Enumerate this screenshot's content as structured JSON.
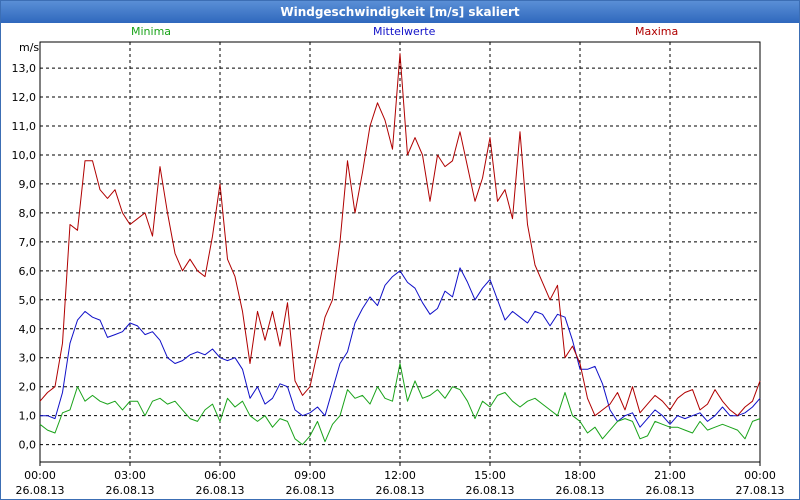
{
  "window": {
    "title": "Windgeschwindigkeit [m/s] skaliert"
  },
  "chart_data": {
    "type": "line",
    "title": "Windgeschwindigkeit [m/s] skaliert",
    "ylabel": "m/s",
    "ylim": [
      -0.6,
      13.9
    ],
    "xlim": [
      "26.08.13 00:00",
      "27.08.13 00:00"
    ],
    "grid": true,
    "legend_position": "top",
    "y_ticks": [
      "0,0",
      "1,0",
      "2,0",
      "3,0",
      "4,0",
      "5,0",
      "6,0",
      "7,0",
      "8,0",
      "9,0",
      "10,0",
      "11,0",
      "12,0",
      "13,0"
    ],
    "x_ticks": [
      {
        "time": "00:00",
        "date": "26.08.13"
      },
      {
        "time": "03:00",
        "date": "26.08.13"
      },
      {
        "time": "06:00",
        "date": "26.08.13"
      },
      {
        "time": "09:00",
        "date": "26.08.13"
      },
      {
        "time": "12:00",
        "date": "26.08.13"
      },
      {
        "time": "15:00",
        "date": "26.08.13"
      },
      {
        "time": "18:00",
        "date": "26.08.13"
      },
      {
        "time": "21:00",
        "date": "26.08.13"
      },
      {
        "time": "00:00",
        "date": "27.08.13"
      }
    ],
    "x_hours": [
      0,
      0.25,
      0.5,
      0.75,
      1,
      1.25,
      1.5,
      1.75,
      2,
      2.25,
      2.5,
      2.75,
      3,
      3.25,
      3.5,
      3.75,
      4,
      4.25,
      4.5,
      4.75,
      5,
      5.25,
      5.5,
      5.75,
      6,
      6.25,
      6.5,
      6.75,
      7,
      7.25,
      7.5,
      7.75,
      8,
      8.25,
      8.5,
      8.75,
      9,
      9.25,
      9.5,
      9.75,
      10,
      10.25,
      10.5,
      10.75,
      11,
      11.25,
      11.5,
      11.75,
      12,
      12.25,
      12.5,
      12.75,
      13,
      13.25,
      13.5,
      13.75,
      14,
      14.25,
      14.5,
      14.75,
      15,
      15.25,
      15.5,
      15.75,
      16,
      16.25,
      16.5,
      16.75,
      17,
      17.25,
      17.5,
      17.75,
      18,
      18.25,
      18.5,
      18.75,
      19,
      19.25,
      19.5,
      19.75,
      20,
      20.25,
      20.5,
      20.75,
      21,
      21.25,
      21.5,
      21.75,
      22,
      22.25,
      22.5,
      22.75,
      23,
      23.25,
      23.5,
      23.75,
      24
    ],
    "series": [
      {
        "name": "Minima",
        "color": "#1aa31a",
        "values": [
          0.7,
          0.5,
          0.4,
          1.1,
          1.2,
          2.0,
          1.5,
          1.7,
          1.5,
          1.4,
          1.5,
          1.2,
          1.5,
          1.5,
          1.0,
          1.5,
          1.6,
          1.4,
          1.5,
          1.2,
          0.9,
          0.8,
          1.2,
          1.4,
          0.8,
          1.6,
          1.3,
          1.5,
          1.0,
          0.8,
          1.0,
          0.6,
          0.9,
          0.8,
          0.2,
          0.0,
          0.3,
          0.8,
          0.1,
          0.7,
          1.0,
          1.9,
          1.6,
          1.7,
          1.4,
          2.0,
          1.6,
          1.5,
          2.8,
          1.5,
          2.2,
          1.6,
          1.7,
          1.9,
          1.6,
          2.0,
          1.9,
          1.5,
          0.9,
          1.5,
          1.3,
          1.7,
          1.8,
          1.5,
          1.3,
          1.5,
          1.6,
          1.4,
          1.2,
          1.0,
          1.8,
          1.0,
          0.8,
          0.4,
          0.6,
          0.2,
          0.5,
          0.8,
          0.9,
          0.8,
          0.2,
          0.3,
          0.8,
          0.7,
          0.6,
          0.6,
          0.5,
          0.4,
          0.8,
          0.5,
          0.6,
          0.7,
          0.6,
          0.5,
          0.2,
          0.8,
          0.9
        ]
      },
      {
        "name": "Mittelwerte",
        "color": "#1010c8",
        "values": [
          1.0,
          1.0,
          0.9,
          1.8,
          3.5,
          4.3,
          4.6,
          4.4,
          4.3,
          3.7,
          3.8,
          3.9,
          4.2,
          4.1,
          3.8,
          3.9,
          3.6,
          3.0,
          2.8,
          2.9,
          3.1,
          3.2,
          3.1,
          3.3,
          3.0,
          2.9,
          3.0,
          2.6,
          1.6,
          2.0,
          1.4,
          1.6,
          2.1,
          2.0,
          1.2,
          1.0,
          1.1,
          1.3,
          1.0,
          1.9,
          2.8,
          3.2,
          4.2,
          4.7,
          5.1,
          4.8,
          5.5,
          5.8,
          6.0,
          5.6,
          5.4,
          4.9,
          4.5,
          4.7,
          5.3,
          5.1,
          6.1,
          5.6,
          5.0,
          5.4,
          5.7,
          5.0,
          4.3,
          4.6,
          4.4,
          4.2,
          4.6,
          4.5,
          4.1,
          4.5,
          4.4,
          3.6,
          2.6,
          2.6,
          2.7,
          2.1,
          1.2,
          0.8,
          1.0,
          1.1,
          0.6,
          0.9,
          1.2,
          1.0,
          0.7,
          1.0,
          0.9,
          1.0,
          1.1,
          0.8,
          1.0,
          1.3,
          1.0,
          1.0,
          1.1,
          1.3,
          1.6
        ]
      },
      {
        "name": "Maxima",
        "color": "#b00000",
        "values": [
          1.5,
          1.8,
          2.0,
          3.5,
          7.6,
          7.4,
          9.8,
          9.8,
          8.8,
          8.5,
          8.8,
          8.0,
          7.6,
          7.8,
          8.0,
          7.2,
          9.6,
          8.0,
          6.6,
          6.0,
          6.4,
          6.0,
          5.8,
          7.2,
          9.0,
          6.4,
          5.8,
          4.6,
          2.8,
          4.6,
          3.6,
          4.6,
          3.4,
          4.9,
          2.2,
          1.7,
          2.0,
          3.2,
          4.4,
          5.0,
          7.0,
          9.8,
          8.0,
          9.4,
          11.0,
          11.8,
          11.2,
          10.2,
          13.5,
          10.0,
          10.6,
          10.0,
          8.4,
          10.0,
          9.6,
          9.8,
          10.8,
          9.6,
          8.4,
          9.2,
          10.6,
          8.4,
          8.8,
          7.8,
          10.8,
          7.6,
          6.2,
          5.6,
          5.0,
          5.5,
          3.0,
          3.4,
          2.8,
          1.6,
          1.0,
          1.2,
          1.4,
          1.8,
          1.2,
          2.0,
          1.1,
          1.4,
          1.7,
          1.5,
          1.2,
          1.6,
          1.8,
          1.9,
          1.2,
          1.4,
          1.9,
          1.5,
          1.2,
          1.0,
          1.3,
          1.5,
          2.2
        ]
      }
    ]
  }
}
